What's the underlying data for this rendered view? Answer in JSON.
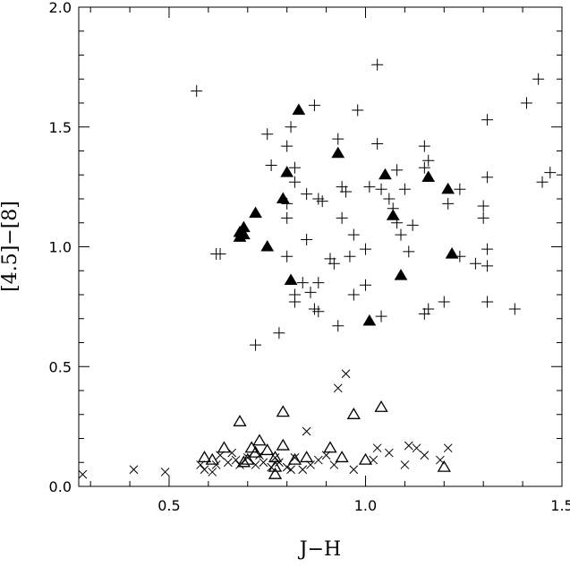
{
  "chart_data": {
    "type": "scatter",
    "xlabel": "J−H",
    "ylabel": "[4.5]−[8]",
    "xlim": [
      0.27,
      1.5
    ],
    "ylim": [
      0.0,
      2.0
    ],
    "x_ticks": [
      {
        "value": 0.5,
        "label": "0.5"
      },
      {
        "value": 1.0,
        "label": "1.0"
      },
      {
        "value": 1.5,
        "label": "1.5"
      }
    ],
    "y_ticks": [
      {
        "value": 0.0,
        "label": "0.0"
      },
      {
        "value": 0.5,
        "label": "0.5"
      },
      {
        "value": 1.0,
        "label": "1.0"
      },
      {
        "value": 1.5,
        "label": "1.5"
      },
      {
        "value": 2.0,
        "label": "2.0"
      }
    ],
    "grid": false,
    "legend": "none",
    "series": [
      {
        "marker": "plus",
        "color": "#000000",
        "points": [
          [
            0.57,
            1.65
          ],
          [
            1.03,
            1.76
          ],
          [
            1.44,
            1.7
          ],
          [
            1.41,
            1.6
          ],
          [
            0.87,
            1.59
          ],
          [
            0.98,
            1.57
          ],
          [
            1.31,
            1.53
          ],
          [
            0.81,
            1.5
          ],
          [
            0.75,
            1.47
          ],
          [
            0.93,
            1.45
          ],
          [
            0.8,
            1.42
          ],
          [
            1.03,
            1.43
          ],
          [
            1.15,
            1.42
          ],
          [
            1.16,
            1.36
          ],
          [
            1.15,
            1.33
          ],
          [
            0.76,
            1.34
          ],
          [
            1.08,
            1.32
          ],
          [
            0.82,
            1.33
          ],
          [
            1.31,
            1.29
          ],
          [
            1.45,
            1.27
          ],
          [
            1.47,
            1.31
          ],
          [
            0.82,
            1.27
          ],
          [
            0.88,
            1.2
          ],
          [
            0.89,
            1.19
          ],
          [
            0.94,
            1.25
          ],
          [
            0.95,
            1.23
          ],
          [
            1.01,
            1.25
          ],
          [
            1.04,
            1.24
          ],
          [
            1.06,
            1.2
          ],
          [
            1.1,
            1.24
          ],
          [
            1.24,
            1.24
          ],
          [
            1.21,
            1.18
          ],
          [
            1.3,
            1.17
          ],
          [
            1.3,
            1.12
          ],
          [
            0.85,
            1.22
          ],
          [
            0.8,
            1.18
          ],
          [
            0.8,
            1.12
          ],
          [
            1.07,
            1.16
          ],
          [
            1.08,
            1.1
          ],
          [
            1.12,
            1.09
          ],
          [
            0.97,
            1.05
          ],
          [
            0.94,
            1.12
          ],
          [
            0.85,
            1.03
          ],
          [
            1.09,
            1.05
          ],
          [
            0.62,
            0.97
          ],
          [
            0.63,
            0.97
          ],
          [
            0.8,
            0.96
          ],
          [
            0.91,
            0.95
          ],
          [
            0.92,
            0.93
          ],
          [
            0.96,
            0.96
          ],
          [
            1.0,
            0.99
          ],
          [
            1.11,
            0.98
          ],
          [
            1.31,
            0.99
          ],
          [
            1.31,
            0.92
          ],
          [
            1.24,
            0.96
          ],
          [
            1.28,
            0.93
          ],
          [
            0.84,
            0.85
          ],
          [
            0.82,
            0.8
          ],
          [
            0.88,
            0.85
          ],
          [
            0.86,
            0.81
          ],
          [
            1.0,
            0.84
          ],
          [
            0.97,
            0.8
          ],
          [
            0.82,
            0.77
          ],
          [
            0.87,
            0.74
          ],
          [
            0.88,
            0.73
          ],
          [
            1.16,
            0.74
          ],
          [
            1.15,
            0.72
          ],
          [
            1.2,
            0.77
          ],
          [
            1.31,
            0.77
          ],
          [
            0.93,
            0.67
          ],
          [
            1.04,
            0.71
          ],
          [
            0.78,
            0.64
          ],
          [
            0.72,
            0.59
          ],
          [
            1.38,
            0.74
          ]
        ]
      },
      {
        "marker": "filled-triangle",
        "color": "#000000",
        "points": [
          [
            0.83,
            1.57
          ],
          [
            0.8,
            1.31
          ],
          [
            0.93,
            1.39
          ],
          [
            1.05,
            1.3
          ],
          [
            1.16,
            1.29
          ],
          [
            1.21,
            1.24
          ],
          [
            0.79,
            1.2
          ],
          [
            0.72,
            1.14
          ],
          [
            1.07,
            1.13
          ],
          [
            0.68,
            1.06
          ],
          [
            0.69,
            1.08
          ],
          [
            0.68,
            1.04
          ],
          [
            0.69,
            1.05
          ],
          [
            0.75,
            1.0
          ],
          [
            1.22,
            0.97
          ],
          [
            0.81,
            0.86
          ],
          [
            1.09,
            0.88
          ],
          [
            1.01,
            0.69
          ]
        ]
      },
      {
        "marker": "open-triangle",
        "color": "#000000",
        "points": [
          [
            0.68,
            0.27
          ],
          [
            0.79,
            0.31
          ],
          [
            0.97,
            0.3
          ],
          [
            1.04,
            0.33
          ],
          [
            0.59,
            0.12
          ],
          [
            0.61,
            0.11
          ],
          [
            0.64,
            0.16
          ],
          [
            0.71,
            0.16
          ],
          [
            0.73,
            0.19
          ],
          [
            0.72,
            0.14
          ],
          [
            0.75,
            0.15
          ],
          [
            0.77,
            0.12
          ],
          [
            0.79,
            0.17
          ],
          [
            0.82,
            0.11
          ],
          [
            0.85,
            0.12
          ],
          [
            0.91,
            0.16
          ],
          [
            0.69,
            0.1
          ],
          [
            0.7,
            0.11
          ],
          [
            0.77,
            0.08
          ],
          [
            0.77,
            0.05
          ],
          [
            0.94,
            0.12
          ],
          [
            1.0,
            0.11
          ],
          [
            1.2,
            0.08
          ]
        ]
      },
      {
        "marker": "cross",
        "color": "#000000",
        "points": [
          [
            0.28,
            0.05
          ],
          [
            0.41,
            0.07
          ],
          [
            0.49,
            0.06
          ],
          [
            0.58,
            0.09
          ],
          [
            0.59,
            0.07
          ],
          [
            0.61,
            0.06
          ],
          [
            0.62,
            0.09
          ],
          [
            0.63,
            0.13
          ],
          [
            0.65,
            0.1
          ],
          [
            0.66,
            0.14
          ],
          [
            0.67,
            0.11
          ],
          [
            0.68,
            0.09
          ],
          [
            0.7,
            0.12
          ],
          [
            0.72,
            0.09
          ],
          [
            0.73,
            0.13
          ],
          [
            0.74,
            0.1
          ],
          [
            0.76,
            0.08
          ],
          [
            0.77,
            0.12
          ],
          [
            0.78,
            0.1
          ],
          [
            0.8,
            0.08
          ],
          [
            0.82,
            0.12
          ],
          [
            0.84,
            0.07
          ],
          [
            0.86,
            0.09
          ],
          [
            0.85,
            0.23
          ],
          [
            0.88,
            0.11
          ],
          [
            0.9,
            0.13
          ],
          [
            0.92,
            0.09
          ],
          [
            0.93,
            0.41
          ],
          [
            0.95,
            0.47
          ],
          [
            0.97,
            0.07
          ],
          [
            1.02,
            0.11
          ],
          [
            1.03,
            0.16
          ],
          [
            1.06,
            0.14
          ],
          [
            1.1,
            0.09
          ],
          [
            1.11,
            0.17
          ],
          [
            1.13,
            0.16
          ],
          [
            1.15,
            0.13
          ],
          [
            1.19,
            0.11
          ],
          [
            1.21,
            0.16
          ],
          [
            0.81,
            0.07
          ]
        ]
      }
    ]
  }
}
